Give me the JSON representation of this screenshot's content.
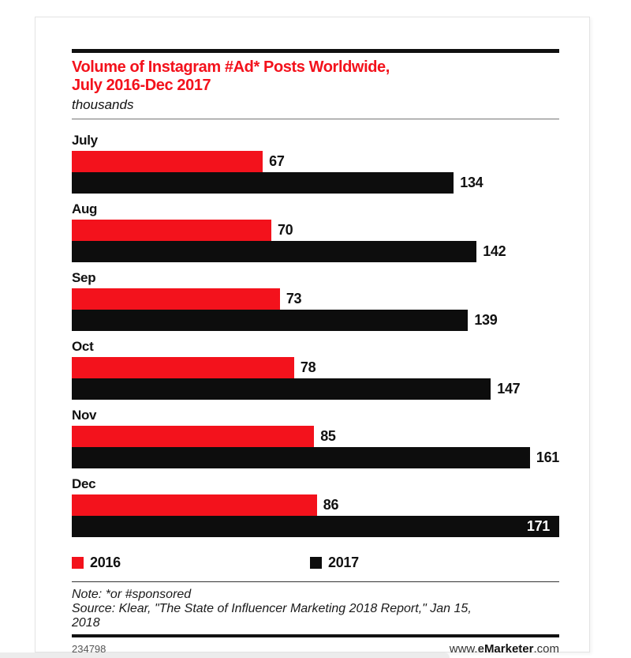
{
  "header": {
    "title_line1": "Volume of Instagram #Ad* Posts Worldwide,",
    "title_line2": "July 2016-Dec 2017",
    "subtitle": "thousands"
  },
  "colors": {
    "series_2016": "#f3121c",
    "series_2017": "#0d0d0d",
    "title_red": "#f3121c"
  },
  "chart_data": {
    "type": "bar",
    "orientation": "horizontal",
    "title": "Volume of Instagram #Ad* Posts Worldwide, July 2016-Dec 2017",
    "units_label": "thousands",
    "categories": [
      "July",
      "Aug",
      "Sep",
      "Oct",
      "Nov",
      "Dec"
    ],
    "series": [
      {
        "name": "2016",
        "color": "#f3121c",
        "values": [
          67,
          70,
          73,
          78,
          85,
          86
        ]
      },
      {
        "name": "2017",
        "color": "#0d0d0d",
        "values": [
          134,
          142,
          139,
          147,
          161,
          171
        ]
      }
    ],
    "xlim": [
      0,
      171
    ],
    "value_labels": "at-bar-end",
    "grid": false,
    "legend_position": "bottom"
  },
  "legend": [
    {
      "label": "2016",
      "color": "#f3121c"
    },
    {
      "label": "2017",
      "color": "#0d0d0d"
    }
  ],
  "footnotes": {
    "note": "Note: *or #sponsored",
    "source_line1": "Source: Klear, \"The State of Influencer Marketing 2018 Report,\" Jan 15,",
    "source_line2": "2018"
  },
  "footer": {
    "chart_id": "234798",
    "site_www": "www.",
    "site_e": "e",
    "site_name": "Marketer",
    "site_tld": ".com"
  }
}
